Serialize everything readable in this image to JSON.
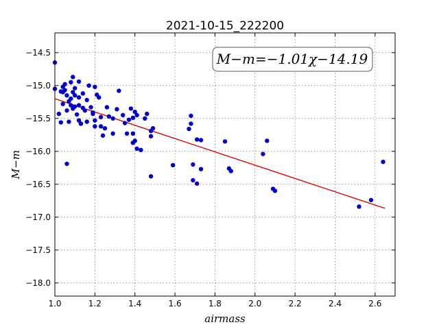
{
  "chart_data": {
    "type": "scatter",
    "title": "2021-10-15_222200",
    "xlabel": "airmass",
    "ylabel": "M−m",
    "xlim": [
      1.0,
      2.7
    ],
    "ylim": [
      -18.2,
      -14.2
    ],
    "y_inverted": true,
    "grid": true,
    "xticks": [
      1.0,
      1.2,
      1.4,
      1.6,
      1.8,
      2.0,
      2.2,
      2.4,
      2.6
    ],
    "xtick_labels": [
      "1.0",
      "1.2",
      "1.4",
      "1.6",
      "1.8",
      "2.0",
      "2.2",
      "2.4",
      "2.6"
    ],
    "yticks": [
      -14.5,
      -15.0,
      -15.5,
      -16.0,
      -16.5,
      -17.0,
      -17.5,
      -18.0
    ],
    "ytick_labels": [
      "−14.5",
      "−15.0",
      "−15.5",
      "−16.0",
      "−16.5",
      "−17.0",
      "−17.5",
      "−18.0"
    ],
    "point_color": "#0000cc",
    "fit_color": "#dd0000",
    "annotation": "M−m=−1.01χ−14.19",
    "fit": {
      "slope": -1.01,
      "intercept": -14.19,
      "x_range": [
        1.0,
        2.65
      ]
    },
    "points": [
      [
        1.0,
        -14.65
      ],
      [
        1.0,
        -15.05
      ],
      [
        1.02,
        -15.43
      ],
      [
        1.03,
        -15.09
      ],
      [
        1.03,
        -15.56
      ],
      [
        1.04,
        -15.02
      ],
      [
        1.04,
        -15.1
      ],
      [
        1.04,
        -15.28
      ],
      [
        1.05,
        -14.98
      ],
      [
        1.05,
        -15.07
      ],
      [
        1.06,
        -15.15
      ],
      [
        1.06,
        -15.38
      ],
      [
        1.06,
        -16.19
      ],
      [
        1.07,
        -15.24
      ],
      [
        1.07,
        -15.55
      ],
      [
        1.08,
        -15.2
      ],
      [
        1.08,
        -15.3
      ],
      [
        1.08,
        -14.95
      ],
      [
        1.09,
        -15.1
      ],
      [
        1.09,
        -15.35
      ],
      [
        1.09,
        -14.87
      ],
      [
        1.1,
        -15.15
      ],
      [
        1.1,
        -15.04
      ],
      [
        1.1,
        -15.32
      ],
      [
        1.11,
        -15.44
      ],
      [
        1.12,
        -15.18
      ],
      [
        1.12,
        -15.3
      ],
      [
        1.12,
        -14.94
      ],
      [
        1.12,
        -15.53
      ],
      [
        1.13,
        -15.58
      ],
      [
        1.13,
        -15.58
      ],
      [
        1.14,
        -15.34
      ],
      [
        1.15,
        -15.38
      ],
      [
        1.14,
        -15.12
      ],
      [
        1.16,
        -15.22
      ],
      [
        1.16,
        -15.55
      ],
      [
        1.17,
        -15.0
      ],
      [
        1.18,
        -15.33
      ],
      [
        1.19,
        -15.41
      ],
      [
        1.19,
        -15.43
      ],
      [
        1.2,
        -15.02
      ],
      [
        1.2,
        -15.53
      ],
      [
        1.2,
        -15.62
      ],
      [
        1.21,
        -15.14
      ],
      [
        1.22,
        -15.18
      ],
      [
        1.23,
        -15.48
      ],
      [
        1.23,
        -15.62
      ],
      [
        1.24,
        -15.76
      ],
      [
        1.25,
        -15.65
      ],
      [
        1.26,
        -15.33
      ],
      [
        1.27,
        -15.47
      ],
      [
        1.29,
        -15.5
      ],
      [
        1.29,
        -15.73
      ],
      [
        1.31,
        -15.36
      ],
      [
        1.32,
        -15.08
      ],
      [
        1.34,
        -15.45
      ],
      [
        1.35,
        -15.57
      ],
      [
        1.36,
        -15.73
      ],
      [
        1.37,
        -15.52
      ],
      [
        1.38,
        -15.35
      ],
      [
        1.39,
        -15.49
      ],
      [
        1.39,
        -15.73
      ],
      [
        1.39,
        -15.87
      ],
      [
        1.4,
        -15.84
      ],
      [
        1.4,
        -15.4
      ],
      [
        1.41,
        -15.45
      ],
      [
        1.41,
        -15.96
      ],
      [
        1.43,
        -15.98
      ],
      [
        1.45,
        -15.5
      ],
      [
        1.46,
        -15.43
      ],
      [
        1.48,
        -15.69
      ],
      [
        1.48,
        -15.77
      ],
      [
        1.49,
        -15.65
      ],
      [
        1.48,
        -16.38
      ],
      [
        1.59,
        -16.21
      ],
      [
        1.67,
        -15.66
      ],
      [
        1.68,
        -15.58
      ],
      [
        1.68,
        -15.46
      ],
      [
        1.69,
        -16.2
      ],
      [
        1.69,
        -16.44
      ],
      [
        1.71,
        -15.82
      ],
      [
        1.71,
        -16.49
      ],
      [
        1.73,
        -15.83
      ],
      [
        1.73,
        -16.27
      ],
      [
        1.85,
        -15.85
      ],
      [
        1.87,
        -16.26
      ],
      [
        1.88,
        -16.3
      ],
      [
        2.04,
        -16.04
      ],
      [
        2.06,
        -15.84
      ],
      [
        2.09,
        -16.57
      ],
      [
        2.1,
        -16.6
      ],
      [
        2.52,
        -16.84
      ],
      [
        2.58,
        -16.74
      ],
      [
        2.64,
        -16.16
      ]
    ]
  }
}
